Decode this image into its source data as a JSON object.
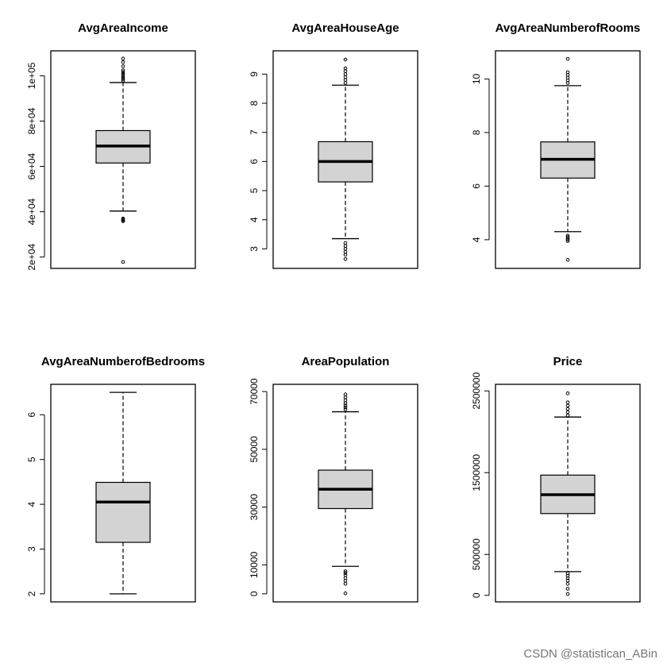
{
  "chart_data": [
    {
      "type": "box",
      "title": "AvgAreaIncome",
      "ylim": [
        15000,
        111000
      ],
      "yticks": [
        20000,
        40000,
        60000,
        80000,
        100000
      ],
      "ytick_labels": [
        "2e+04",
        "4e+04",
        "6e+04",
        "8e+04",
        "1e+05"
      ],
      "stats": {
        "lower_whisker": 40300,
        "q1": 61500,
        "median": 69000,
        "q3": 75800,
        "upper_whisker": 97000
      },
      "outliers": [
        17800,
        35800,
        36200,
        36600,
        37000,
        97800,
        98500,
        99200,
        100000,
        100800,
        101600,
        102400,
        104200,
        106000,
        107600
      ]
    },
    {
      "type": "box",
      "title": "AvgAreaHouseAge",
      "ylim": [
        2.33,
        9.8
      ],
      "yticks": [
        3,
        4,
        5,
        6,
        7,
        8,
        9
      ],
      "ytick_labels": [
        "3",
        "4",
        "5",
        "6",
        "7",
        "8",
        "9"
      ],
      "stats": {
        "lower_whisker": 3.35,
        "q1": 5.3,
        "median": 6.0,
        "q3": 6.68,
        "upper_whisker": 8.62
      },
      "outliers": [
        2.65,
        2.8,
        2.9,
        3.0,
        3.1,
        3.2,
        8.7,
        8.8,
        8.9,
        9.0,
        9.1,
        9.2,
        9.5
      ]
    },
    {
      "type": "box",
      "title": "AvgAreaNumberofRooms",
      "ylim": [
        2.93,
        11.05
      ],
      "yticks": [
        4,
        6,
        8,
        10
      ],
      "ytick_labels": [
        "4",
        "6",
        "8",
        "10"
      ],
      "stats": {
        "lower_whisker": 4.3,
        "q1": 6.3,
        "median": 7.0,
        "q3": 7.65,
        "upper_whisker": 9.75
      },
      "outliers": [
        3.25,
        3.95,
        4.0,
        4.05,
        4.1,
        4.15,
        9.85,
        9.95,
        10.05,
        10.15,
        10.25,
        10.75
      ]
    },
    {
      "type": "box",
      "title": "AvgAreaNumberofBedrooms",
      "ylim": [
        1.82,
        6.68
      ],
      "yticks": [
        2,
        3,
        4,
        5,
        6
      ],
      "ytick_labels": [
        "2",
        "3",
        "4",
        "5",
        "6"
      ],
      "stats": {
        "lower_whisker": 2.0,
        "q1": 3.15,
        "median": 4.05,
        "q3": 4.49,
        "upper_whisker": 6.5
      },
      "outliers": []
    },
    {
      "type": "box",
      "title": "AreaPopulation",
      "ylim": [
        -2800,
        72500
      ],
      "yticks": [
        0,
        10000,
        30000,
        50000,
        70000
      ],
      "ytick_labels": [
        "0",
        "10000",
        "30000",
        "50000",
        "70000"
      ],
      "stats": {
        "lower_whisker": 9500,
        "q1": 29500,
        "median": 36200,
        "q3": 42800,
        "upper_whisker": 63000
      },
      "outliers": [
        170,
        3500,
        4500,
        5500,
        6500,
        7200,
        7800,
        63800,
        64500,
        65200,
        66000,
        67000,
        68000,
        69000
      ]
    },
    {
      "type": "box",
      "title": "Price",
      "ylim": [
        -80000,
        2580000
      ],
      "yticks": [
        0,
        500000,
        1500000,
        2500000
      ],
      "ytick_labels": [
        "0",
        "500000",
        "1500000",
        "2500000"
      ],
      "stats": {
        "lower_whisker": 290000,
        "q1": 1000000,
        "median": 1230000,
        "q3": 1470000,
        "upper_whisker": 2180000
      },
      "outliers": [
        16000,
        80000,
        140000,
        180000,
        210000,
        240000,
        270000,
        2200000,
        2240000,
        2280000,
        2320000,
        2360000,
        2470000
      ]
    }
  ],
  "watermark": "CSDN @statistican_ABin"
}
